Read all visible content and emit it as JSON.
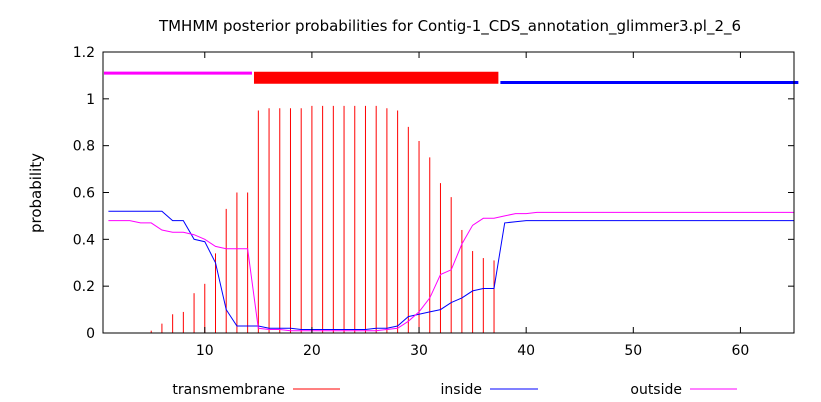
{
  "chart_data": {
    "type": "line",
    "title": "TMHMM posterior probabilities for Contig-1_CDS_annotation_glimmer3.pl_2_6",
    "xlabel": "",
    "ylabel": "probability",
    "xlim": [
      0.5,
      65
    ],
    "ylim": [
      0,
      1.2
    ],
    "xticks": [
      10,
      20,
      30,
      40,
      50,
      60
    ],
    "yticks": [
      0,
      0.2,
      0.4,
      0.6,
      0.8,
      1,
      1.2
    ],
    "ytick_labels": [
      "0",
      "0.2",
      "0.4",
      "0.6",
      "0.8",
      "1",
      "1.2"
    ],
    "grid": false,
    "legend_position": "bottom",
    "colors": {
      "transmembrane": "#ff0000",
      "inside": "#0000ff",
      "outside": "#ff00ff"
    },
    "topology": [
      {
        "region": "outside",
        "start": 1,
        "end": 14
      },
      {
        "region": "transmembrane",
        "start": 15,
        "end": 37
      },
      {
        "region": "inside",
        "start": 38,
        "end": 65
      }
    ],
    "series": [
      {
        "name": "transmembrane",
        "style": "impulses",
        "x": [
          1,
          2,
          3,
          4,
          5,
          6,
          7,
          8,
          9,
          10,
          11,
          12,
          13,
          14,
          15,
          16,
          17,
          18,
          19,
          20,
          21,
          22,
          23,
          24,
          25,
          26,
          27,
          28,
          29,
          30,
          31,
          32,
          33,
          34,
          35,
          36,
          37,
          38,
          39,
          40,
          41,
          42,
          43,
          44,
          45,
          46,
          47,
          48,
          49,
          50,
          51,
          52,
          53,
          54,
          55,
          56,
          57,
          58,
          59,
          60,
          61,
          62,
          63,
          64,
          65
        ],
        "values": [
          0,
          0,
          0,
          0,
          0.01,
          0.04,
          0.08,
          0.09,
          0.17,
          0.21,
          0.34,
          0.53,
          0.6,
          0.6,
          0.95,
          0.96,
          0.96,
          0.96,
          0.96,
          0.97,
          0.97,
          0.97,
          0.97,
          0.97,
          0.97,
          0.97,
          0.96,
          0.95,
          0.88,
          0.82,
          0.75,
          0.64,
          0.58,
          0.44,
          0.35,
          0.32,
          0.31,
          0,
          0,
          0,
          0,
          0,
          0,
          0,
          0,
          0,
          0,
          0,
          0,
          0,
          0,
          0,
          0,
          0,
          0,
          0,
          0,
          0,
          0,
          0,
          0,
          0,
          0,
          0,
          0
        ]
      },
      {
        "name": "inside",
        "style": "line",
        "x": [
          1,
          2,
          3,
          4,
          5,
          6,
          7,
          8,
          9,
          10,
          11,
          12,
          13,
          14,
          15,
          16,
          17,
          18,
          19,
          20,
          21,
          22,
          23,
          24,
          25,
          26,
          27,
          28,
          29,
          30,
          31,
          32,
          33,
          34,
          35,
          36,
          37,
          38,
          39,
          40,
          41,
          42,
          43,
          44,
          45,
          46,
          47,
          48,
          49,
          50,
          51,
          52,
          53,
          54,
          55,
          56,
          57,
          58,
          59,
          60,
          61,
          62,
          63,
          64,
          65
        ],
        "values": [
          0.52,
          0.52,
          0.52,
          0.52,
          0.52,
          0.52,
          0.48,
          0.48,
          0.4,
          0.39,
          0.3,
          0.1,
          0.03,
          0.03,
          0.03,
          0.02,
          0.02,
          0.02,
          0.015,
          0.015,
          0.015,
          0.015,
          0.015,
          0.015,
          0.015,
          0.02,
          0.02,
          0.03,
          0.07,
          0.08,
          0.09,
          0.1,
          0.13,
          0.15,
          0.18,
          0.19,
          0.19,
          0.47,
          0.475,
          0.48,
          0.48,
          0.48,
          0.48,
          0.48,
          0.48,
          0.48,
          0.48,
          0.48,
          0.48,
          0.48,
          0.48,
          0.48,
          0.48,
          0.48,
          0.48,
          0.48,
          0.48,
          0.48,
          0.48,
          0.48,
          0.48,
          0.48,
          0.48,
          0.48,
          0.48
        ]
      },
      {
        "name": "outside",
        "style": "line",
        "x": [
          1,
          2,
          3,
          4,
          5,
          6,
          7,
          8,
          9,
          10,
          11,
          12,
          13,
          14,
          15,
          16,
          17,
          18,
          19,
          20,
          21,
          22,
          23,
          24,
          25,
          26,
          27,
          28,
          29,
          30,
          31,
          32,
          33,
          34,
          35,
          36,
          37,
          38,
          39,
          40,
          41,
          42,
          43,
          44,
          45,
          46,
          47,
          48,
          49,
          50,
          51,
          52,
          53,
          54,
          55,
          56,
          57,
          58,
          59,
          60,
          61,
          62,
          63,
          64,
          65
        ],
        "values": [
          0.48,
          0.48,
          0.48,
          0.47,
          0.47,
          0.44,
          0.43,
          0.43,
          0.42,
          0.4,
          0.37,
          0.36,
          0.36,
          0.36,
          0.02,
          0.015,
          0.015,
          0.01,
          0.01,
          0.01,
          0.01,
          0.01,
          0.01,
          0.01,
          0.01,
          0.01,
          0.015,
          0.02,
          0.05,
          0.09,
          0.15,
          0.25,
          0.27,
          0.38,
          0.46,
          0.49,
          0.49,
          0.5,
          0.51,
          0.51,
          0.515,
          0.515,
          0.515,
          0.515,
          0.515,
          0.515,
          0.515,
          0.515,
          0.515,
          0.515,
          0.515,
          0.515,
          0.515,
          0.515,
          0.515,
          0.515,
          0.515,
          0.515,
          0.515,
          0.515,
          0.515,
          0.515,
          0.515,
          0.515,
          0.515
        ]
      }
    ]
  }
}
